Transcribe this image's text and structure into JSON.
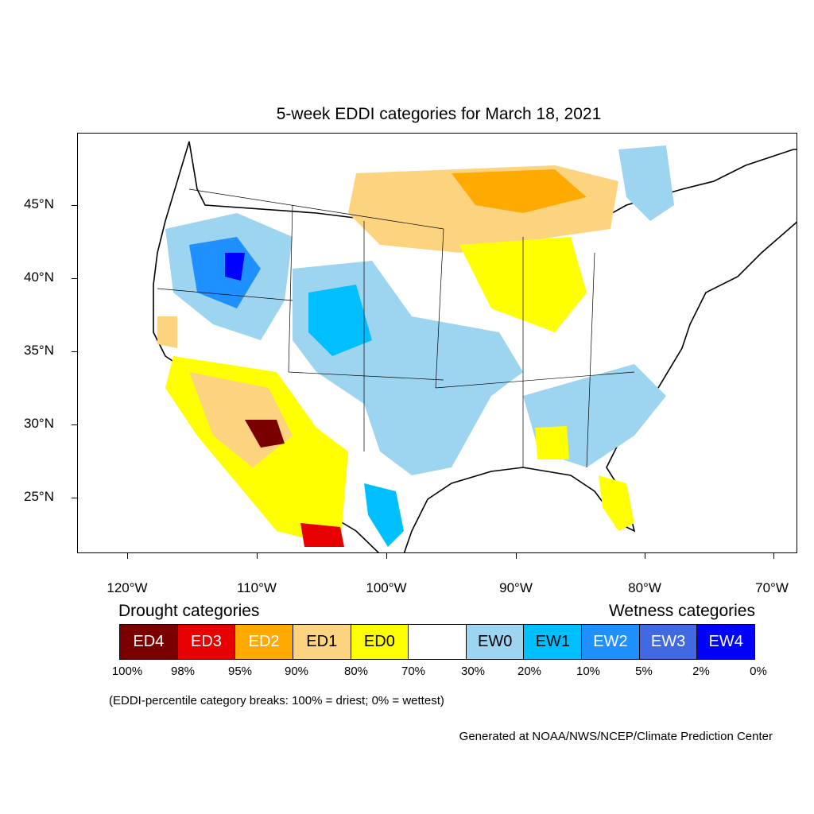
{
  "title": "5-week EDDI categories for March 18, 2021",
  "axes": {
    "lat_labels": [
      "45°N",
      "40°N",
      "35°N",
      "30°N",
      "25°N"
    ],
    "lon_labels": [
      "120°W",
      "110°W",
      "100°W",
      "90°W",
      "80°W",
      "70°W"
    ]
  },
  "legend": {
    "drought_title": "Drought categories",
    "wetness_title": "Wetness categories",
    "categories": [
      {
        "label": "ED4",
        "color": "#7a0000",
        "text_color": "#ffffff"
      },
      {
        "label": "ED3",
        "color": "#e60000",
        "text_color": "#ffffff"
      },
      {
        "label": "ED2",
        "color": "#ffaa00",
        "text_color": "#ffffff"
      },
      {
        "label": "ED1",
        "color": "#fcd37f",
        "text_color": "#000000"
      },
      {
        "label": "ED0",
        "color": "#ffff00",
        "text_color": "#000000"
      },
      {
        "label": "",
        "color": "#ffffff",
        "text_color": "#000000"
      },
      {
        "label": "EW0",
        "color": "#9dd4f0",
        "text_color": "#000000"
      },
      {
        "label": "EW1",
        "color": "#00bfff",
        "text_color": "#000000"
      },
      {
        "label": "EW2",
        "color": "#1e90ff",
        "text_color": "#ffffff"
      },
      {
        "label": "EW3",
        "color": "#4169e1",
        "text_color": "#ffffff"
      },
      {
        "label": "EW4",
        "color": "#0000ff",
        "text_color": "#ffffff"
      }
    ],
    "breaks": [
      "100%",
      "98%",
      "95%",
      "90%",
      "80%",
      "70%",
      "30%",
      "20%",
      "10%",
      "5%",
      "2%",
      "0%"
    ]
  },
  "note": "(EDDI-percentile category breaks: 100% = driest; 0% = wettest)",
  "credit": "Generated at NOAA/NWS/NCEP/Climate Prediction Center"
}
